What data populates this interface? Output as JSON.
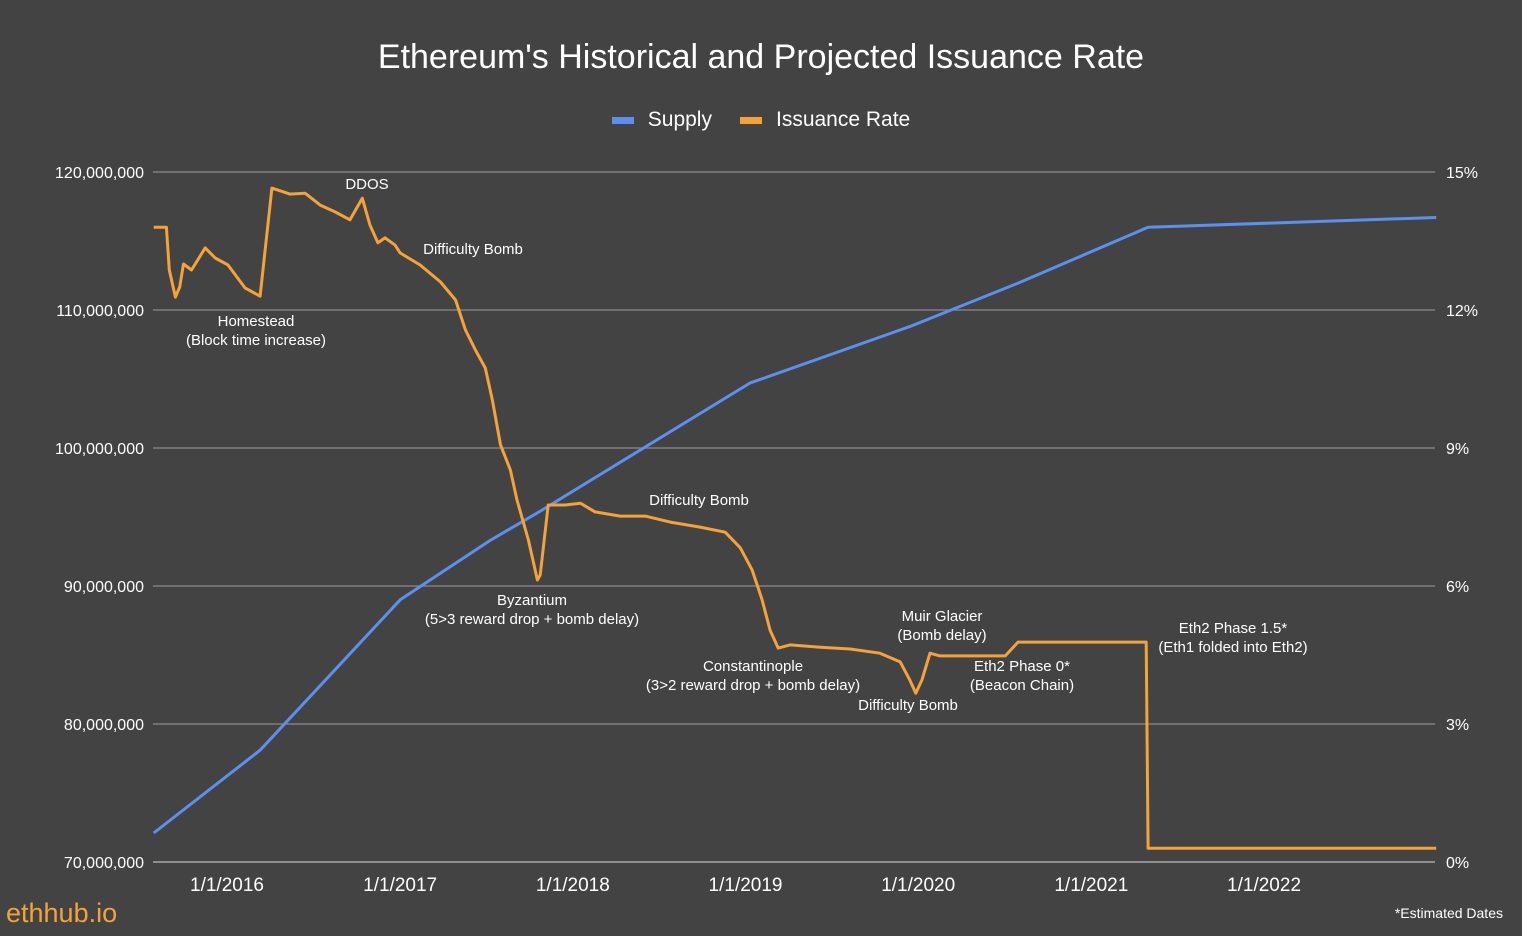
{
  "chart_data": {
    "type": "line",
    "title": "Ethereum's Historical and Projected Issuance Rate",
    "legend_position": "top",
    "grid": true,
    "colors": {
      "background": "#434343",
      "grid": "#8a8a8a",
      "Supply": "#5b8ff0",
      "Issuance Rate": "#f3a33a"
    },
    "x_axis": {
      "type": "date",
      "range": [
        "2015-07-30",
        "2022-12-31"
      ],
      "ticks": [
        "1/1/2016",
        "1/1/2017",
        "1/1/2018",
        "1/1/2019",
        "1/1/2020",
        "1/1/2021",
        "1/1/2022"
      ],
      "tick_dates": [
        "2016-01-01",
        "2017-01-01",
        "2018-01-01",
        "2019-01-01",
        "2020-01-01",
        "2021-01-01",
        "2022-01-01"
      ]
    },
    "y_left": {
      "range": [
        70000000,
        120000000
      ],
      "ticks": [
        70000000,
        80000000,
        90000000,
        100000000,
        110000000,
        120000000
      ],
      "tick_labels": [
        "70,000,000",
        "80,000,000",
        "90,000,000",
        "100,000,000",
        "110,000,000",
        "120,000,000"
      ]
    },
    "y_right": {
      "range": [
        0,
        15
      ],
      "unit": "%",
      "ticks": [
        0,
        3,
        6,
        9,
        12,
        15
      ],
      "tick_labels": [
        "0%",
        "3%",
        "6%",
        "9%",
        "12%",
        "15%"
      ]
    },
    "series": [
      {
        "name": "Supply",
        "axis": "left",
        "points": [
          [
            "2015-07-30",
            72100000
          ],
          [
            "2016-03-11",
            78100000
          ],
          [
            "2017-01-01",
            89000000
          ],
          [
            "2017-07-10",
            93300000
          ],
          [
            "2017-10-23",
            95400000
          ],
          [
            "2019-01-10",
            104700000
          ],
          [
            "2019-12-14",
            108800000
          ],
          [
            "2020-08-03",
            112000000
          ],
          [
            "2021-05-01",
            116000000
          ],
          [
            "2022-12-31",
            116700000
          ]
        ]
      },
      {
        "name": "Issuance Rate",
        "axis": "right",
        "points": [
          [
            "2015-07-30",
            13.8
          ],
          [
            "2015-08-26",
            13.8
          ],
          [
            "2015-09-01",
            12.87
          ],
          [
            "2015-09-14",
            12.28
          ],
          [
            "2015-09-23",
            12.5
          ],
          [
            "2015-10-01",
            13.0
          ],
          [
            "2015-10-18",
            12.87
          ],
          [
            "2015-11-16",
            13.35
          ],
          [
            "2015-12-07",
            13.13
          ],
          [
            "2016-01-03",
            12.98
          ],
          [
            "2016-02-08",
            12.48
          ],
          [
            "2016-03-11",
            12.3
          ],
          [
            "2016-04-05",
            14.65
          ],
          [
            "2016-05-13",
            14.52
          ],
          [
            "2016-06-14",
            14.54
          ],
          [
            "2016-07-16",
            14.28
          ],
          [
            "2016-08-17",
            14.13
          ],
          [
            "2016-09-17",
            13.96
          ],
          [
            "2016-10-13",
            14.43
          ],
          [
            "2016-10-29",
            13.85
          ],
          [
            "2016-11-15",
            13.46
          ],
          [
            "2016-11-30",
            13.57
          ],
          [
            "2016-12-21",
            13.41
          ],
          [
            "2017-01-01",
            13.24
          ],
          [
            "2017-02-12",
            12.98
          ],
          [
            "2017-03-27",
            12.61
          ],
          [
            "2017-04-28",
            12.22
          ],
          [
            "2017-05-19",
            11.57
          ],
          [
            "2017-06-09",
            11.13
          ],
          [
            "2017-06-30",
            10.74
          ],
          [
            "2017-07-15",
            10.04
          ],
          [
            "2017-08-01",
            9.07
          ],
          [
            "2017-08-22",
            8.52
          ],
          [
            "2017-09-05",
            7.87
          ],
          [
            "2017-09-29",
            7.0
          ],
          [
            "2017-10-18",
            6.13
          ],
          [
            "2017-10-24",
            6.24
          ],
          [
            "2017-11-10",
            7.76
          ],
          [
            "2017-12-16",
            7.76
          ],
          [
            "2018-01-17",
            7.8
          ],
          [
            "2018-02-17",
            7.61
          ],
          [
            "2018-04-11",
            7.52
          ],
          [
            "2018-06-03",
            7.52
          ],
          [
            "2018-07-26",
            7.39
          ],
          [
            "2018-09-27",
            7.28
          ],
          [
            "2018-11-19",
            7.17
          ],
          [
            "2018-12-21",
            6.83
          ],
          [
            "2019-01-15",
            6.35
          ],
          [
            "2019-02-05",
            5.7
          ],
          [
            "2019-02-22",
            5.04
          ],
          [
            "2019-03-11",
            4.65
          ],
          [
            "2019-04-05",
            4.72
          ],
          [
            "2019-06-08",
            4.67
          ],
          [
            "2019-08-10",
            4.63
          ],
          [
            "2019-10-12",
            4.54
          ],
          [
            "2019-11-24",
            4.35
          ],
          [
            "2019-12-14",
            3.96
          ],
          [
            "2019-12-27",
            3.67
          ],
          [
            "2020-01-09",
            3.96
          ],
          [
            "2020-01-26",
            4.54
          ],
          [
            "2020-02-16",
            4.48
          ],
          [
            "2020-07-03",
            4.48
          ],
          [
            "2020-07-30",
            4.78
          ],
          [
            "2021-04-27",
            4.78
          ],
          [
            "2021-05-01",
            0.3
          ],
          [
            "2022-12-31",
            0.3
          ]
        ]
      }
    ],
    "annotations": [
      {
        "id": "ddos",
        "lines": [
          "DDOS"
        ]
      },
      {
        "id": "difficulty-bomb-1",
        "lines": [
          "Difficulty Bomb"
        ]
      },
      {
        "id": "homestead",
        "lines": [
          "Homestead",
          "(Block time increase)"
        ]
      },
      {
        "id": "difficulty-bomb-2",
        "lines": [
          "Difficulty Bomb"
        ]
      },
      {
        "id": "byzantium",
        "lines": [
          "Byzantium",
          "(5>3 reward drop + bomb delay)"
        ]
      },
      {
        "id": "muir-glacier",
        "lines": [
          "Muir Glacier",
          "(Bomb delay)"
        ]
      },
      {
        "id": "constantinople",
        "lines": [
          "Constantinople",
          "(3>2 reward drop + bomb delay)"
        ]
      },
      {
        "id": "eth2-phase-0",
        "lines": [
          "Eth2 Phase 0*",
          "(Beacon Chain)"
        ]
      },
      {
        "id": "difficulty-bomb-3",
        "lines": [
          "Difficulty Bomb"
        ]
      },
      {
        "id": "eth2-phase-1-5",
        "lines": [
          "Eth2 Phase 1.5*",
          "(Eth1 folded into Eth2)"
        ]
      }
    ]
  },
  "footer": {
    "brand": "ethhub.io",
    "note": "*Estimated Dates"
  }
}
